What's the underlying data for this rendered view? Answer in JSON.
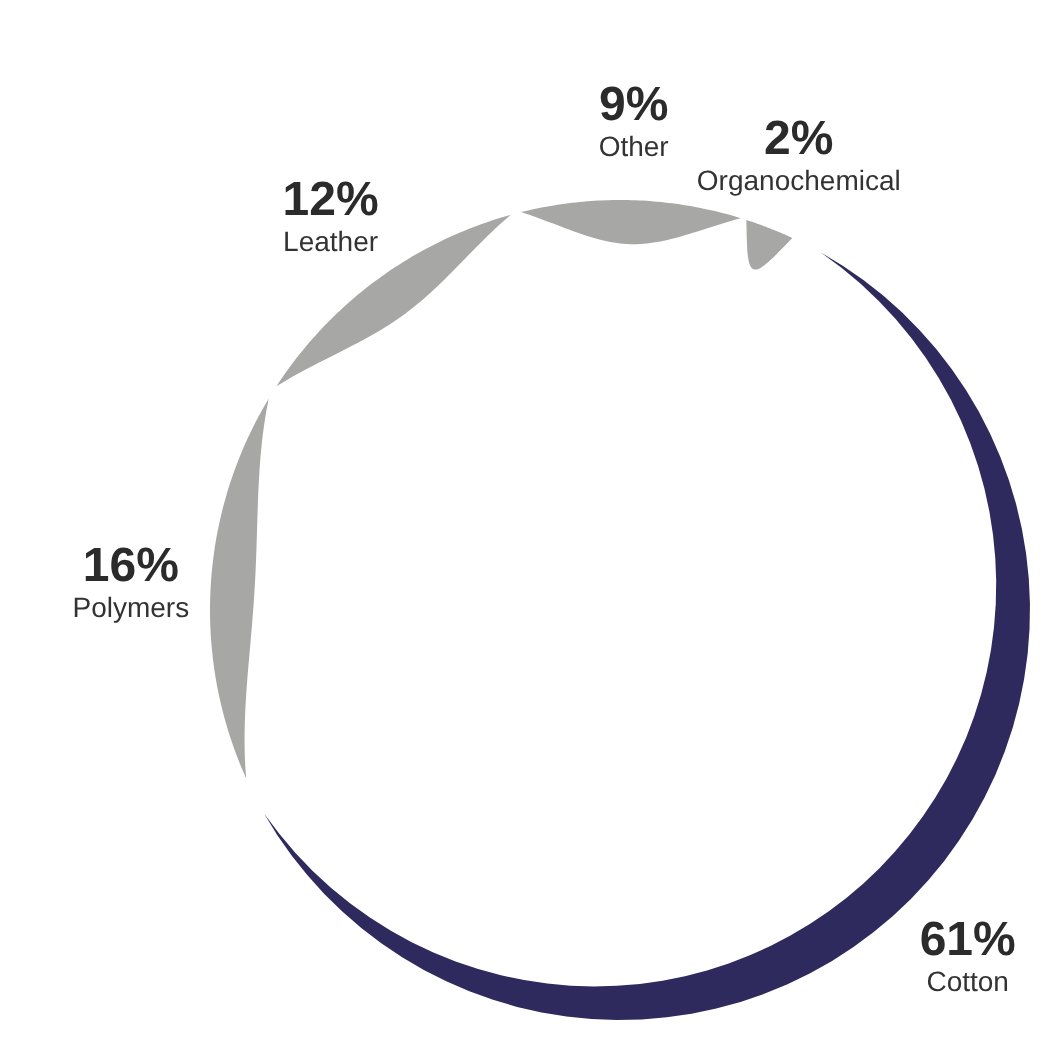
{
  "chart_data": {
    "type": "donut",
    "categories": [
      "Cotton",
      "Polymers",
      "Leather",
      "Other",
      "Organochemical"
    ],
    "values": [
      61,
      16,
      12,
      9,
      2
    ],
    "colors": [
      "#2e2a5e",
      "#a7a7a5",
      "#a7a7a5",
      "#a7a7a5",
      "#a7a7a5"
    ],
    "value_labels": [
      "61%",
      "16%",
      "12%",
      "9%",
      "2%"
    ]
  }
}
